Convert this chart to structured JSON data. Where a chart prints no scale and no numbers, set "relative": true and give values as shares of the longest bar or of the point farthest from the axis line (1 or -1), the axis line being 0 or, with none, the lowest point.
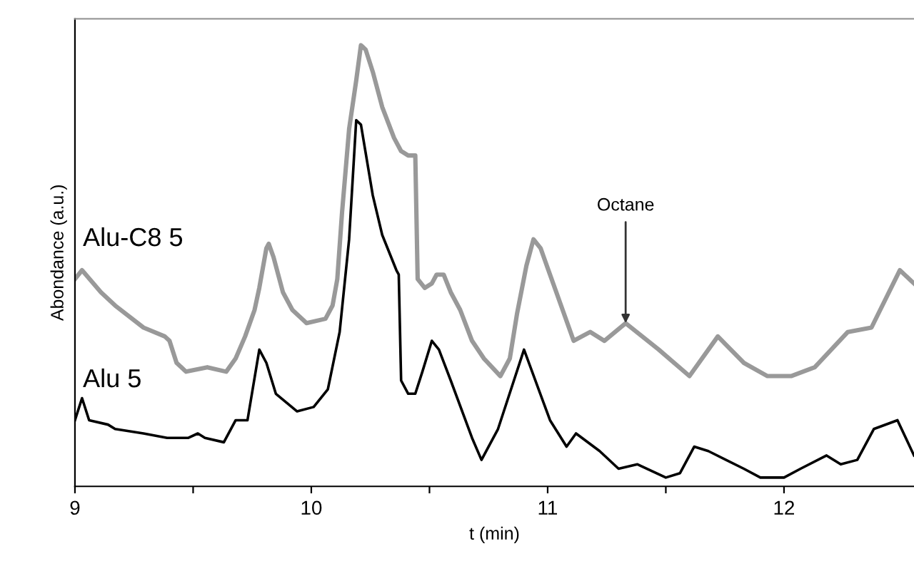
{
  "chart_data": {
    "type": "line",
    "relative": true,
    "xlabel": "t (min)",
    "ylabel": "Abondance (a.u.)",
    "xlim": [
      9,
      12.55
    ],
    "xticks": [
      9,
      {
        "value": 9.5,
        "label": null
      },
      10,
      {
        "value": 10.5,
        "label": null
      },
      11,
      {
        "value": 11.5,
        "label": null
      },
      12
    ],
    "grid": false,
    "legend": false,
    "marker": "none",
    "line_style": "solid",
    "annotations": [
      {
        "text": "Octane",
        "x": 11.33,
        "y": 0.37
      }
    ],
    "series": [
      {
        "name": "Alu-C8 5",
        "color": "#999999",
        "x": [
          9.0,
          9.03,
          9.11,
          9.17,
          9.29,
          9.38,
          9.4,
          9.43,
          9.47,
          9.56,
          9.64,
          9.68,
          9.72,
          9.76,
          9.78,
          9.81,
          9.82,
          9.84,
          9.88,
          9.92,
          9.98,
          10.06,
          10.09,
          10.11,
          10.13,
          10.16,
          10.19,
          10.21,
          10.23,
          10.26,
          10.3,
          10.35,
          10.38,
          10.41,
          10.43,
          10.44,
          10.45,
          10.48,
          10.51,
          10.53,
          10.56,
          10.59,
          10.63,
          10.68,
          10.73,
          10.8,
          10.84,
          10.87,
          10.91,
          10.94,
          10.97,
          11.03,
          11.11,
          11.18,
          11.24,
          11.33,
          11.47,
          11.6,
          11.72,
          11.83,
          11.93,
          12.03,
          12.13,
          12.27,
          12.37,
          12.49,
          12.55
        ],
        "values": [
          0.47,
          0.49,
          0.44,
          0.41,
          0.36,
          0.34,
          0.33,
          0.28,
          0.26,
          0.27,
          0.26,
          0.29,
          0.34,
          0.4,
          0.45,
          0.54,
          0.55,
          0.52,
          0.44,
          0.4,
          0.37,
          0.38,
          0.41,
          0.47,
          0.62,
          0.81,
          0.92,
          1.0,
          0.99,
          0.94,
          0.86,
          0.79,
          0.76,
          0.75,
          0.75,
          0.75,
          0.47,
          0.45,
          0.46,
          0.48,
          0.48,
          0.44,
          0.4,
          0.33,
          0.29,
          0.25,
          0.29,
          0.39,
          0.5,
          0.56,
          0.54,
          0.45,
          0.33,
          0.35,
          0.33,
          0.37,
          0.31,
          0.25,
          0.34,
          0.28,
          0.25,
          0.25,
          0.27,
          0.35,
          0.36,
          0.49,
          0.46
        ]
      },
      {
        "name": "Alu 5",
        "color": "#000000",
        "x": [
          9.0,
          9.03,
          9.06,
          9.14,
          9.17,
          9.29,
          9.39,
          9.48,
          9.52,
          9.55,
          9.63,
          9.68,
          9.73,
          9.78,
          9.81,
          9.85,
          9.94,
          10.01,
          10.07,
          10.12,
          10.16,
          10.19,
          10.21,
          10.26,
          10.3,
          10.36,
          10.37,
          10.38,
          10.41,
          10.44,
          10.47,
          10.51,
          10.54,
          10.59,
          10.68,
          10.72,
          10.79,
          10.9,
          11.01,
          11.08,
          11.12,
          11.22,
          11.3,
          11.38,
          11.5,
          11.56,
          11.62,
          11.68,
          11.83,
          11.9,
          12.0,
          12.07,
          12.18,
          12.24,
          12.31,
          12.38,
          12.48,
          12.55
        ],
        "values": [
          0.15,
          0.2,
          0.15,
          0.14,
          0.13,
          0.12,
          0.11,
          0.11,
          0.12,
          0.11,
          0.1,
          0.15,
          0.15,
          0.31,
          0.28,
          0.21,
          0.17,
          0.18,
          0.22,
          0.35,
          0.56,
          0.83,
          0.82,
          0.66,
          0.57,
          0.49,
          0.48,
          0.24,
          0.21,
          0.21,
          0.26,
          0.33,
          0.31,
          0.24,
          0.11,
          0.06,
          0.13,
          0.31,
          0.15,
          0.09,
          0.12,
          0.08,
          0.04,
          0.05,
          0.02,
          0.03,
          0.09,
          0.08,
          0.04,
          0.02,
          0.02,
          0.04,
          0.07,
          0.05,
          0.06,
          0.13,
          0.15,
          0.07
        ]
      }
    ]
  }
}
